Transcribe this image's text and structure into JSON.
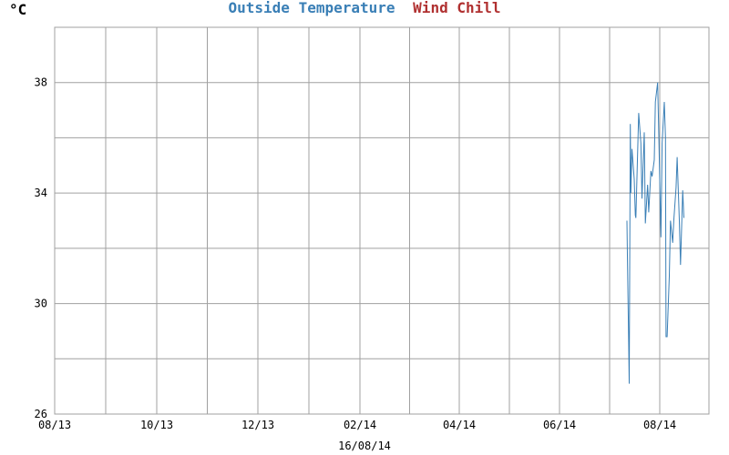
{
  "colors": {
    "temperature": "#3a7fb6",
    "wind_chill": "#b03030",
    "grid": "#a0a0a0",
    "axis_text": "#000000",
    "background": "#ffffff"
  },
  "chart_data": {
    "type": "line",
    "title_parts": [
      "Outside Temperature",
      "Wind Chill"
    ],
    "unit_label": "°C",
    "xlabel": "16/08/14",
    "ylabel": "",
    "x_tick_labels": [
      "08/13",
      "10/13",
      "12/13",
      "02/14",
      "04/14",
      "06/14",
      "08/14"
    ],
    "y_tick_labels": [
      "26",
      "30",
      "34",
      "38"
    ],
    "ylim": [
      26,
      40
    ],
    "xlim": [
      "2013-08-01",
      "2014-08-27"
    ],
    "grid": true,
    "series": [
      {
        "name": "Outside Temperature",
        "color": "#3a7fb6",
        "points": [
          [
            "2014-07-09",
            33.0
          ],
          [
            "2014-07-09",
            31.5
          ],
          [
            "2014-07-10",
            28.6
          ],
          [
            "2014-07-10",
            27.1
          ],
          [
            "2014-07-11",
            36.5
          ],
          [
            "2014-07-11",
            34.0
          ],
          [
            "2014-07-12",
            35.6
          ],
          [
            "2014-07-13",
            34.5
          ],
          [
            "2014-07-14",
            33.2
          ],
          [
            "2014-07-14",
            33.1
          ],
          [
            "2014-07-16",
            36.9
          ],
          [
            "2014-07-17",
            35.8
          ],
          [
            "2014-07-18",
            33.8
          ],
          [
            "2014-07-19",
            36.2
          ],
          [
            "2014-07-20",
            32.9
          ],
          [
            "2014-07-21",
            34.3
          ],
          [
            "2014-07-22",
            33.3
          ],
          [
            "2014-07-23",
            34.8
          ],
          [
            "2014-07-24",
            34.6
          ],
          [
            "2014-07-25",
            35.2
          ],
          [
            "2014-07-26",
            37.3
          ],
          [
            "2014-07-27",
            38.0
          ],
          [
            "2014-07-28",
            36.2
          ],
          [
            "2014-07-29",
            32.4
          ],
          [
            "2014-07-30",
            35.8
          ],
          [
            "2014-07-31",
            37.3
          ],
          [
            "2014-08-01",
            36.0
          ],
          [
            "2014-08-01",
            28.8
          ],
          [
            "2014-08-02",
            28.8
          ],
          [
            "2014-08-03",
            31.0
          ],
          [
            "2014-08-04",
            33.0
          ],
          [
            "2014-08-05",
            32.2
          ],
          [
            "2014-08-06",
            33.0
          ],
          [
            "2014-08-07",
            34.2
          ],
          [
            "2014-08-08",
            35.3
          ],
          [
            "2014-08-09",
            33.0
          ],
          [
            "2014-08-10",
            31.4
          ],
          [
            "2014-08-11",
            34.1
          ],
          [
            "2014-08-12",
            33.1
          ]
        ]
      }
    ]
  }
}
